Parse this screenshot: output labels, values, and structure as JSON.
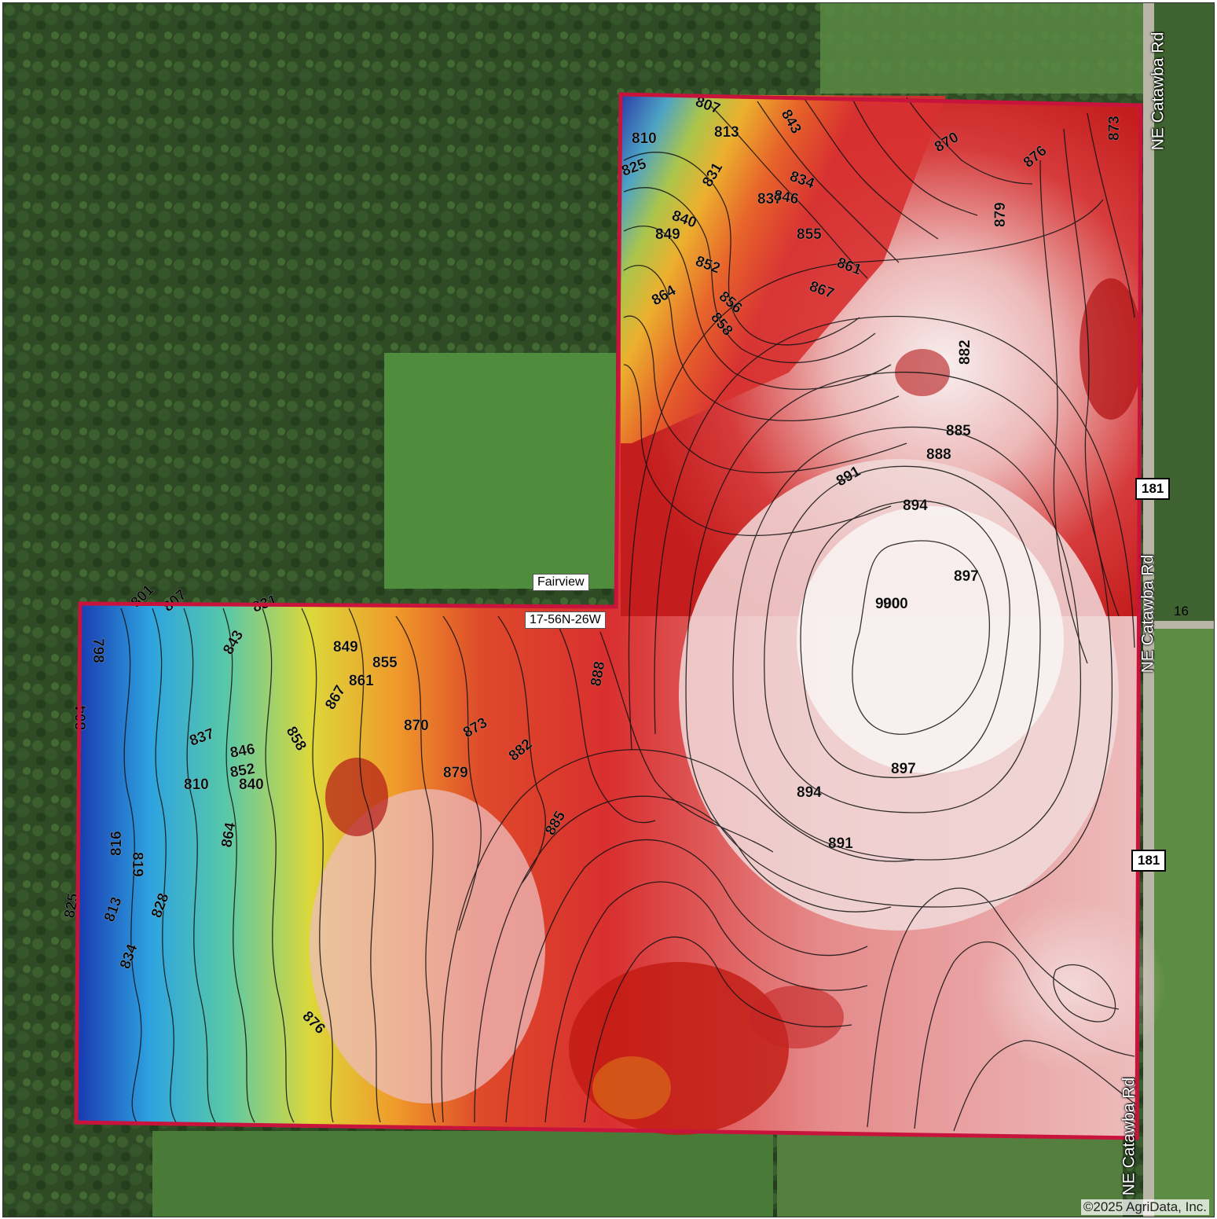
{
  "map": {
    "road_labels": [
      "NE Catawba Rd",
      "NE Catawba Rd",
      "NE Catawba Rd"
    ],
    "route_shields": [
      "181",
      "181"
    ],
    "route_number": "16",
    "place_label": "Fairview",
    "section_label": "17-56N-26W",
    "copyright": "©2025 AgriData, Inc.",
    "colors": {
      "boundary": "#c8143c",
      "low_elevation": "#1a3fa8",
      "mid_elevation": "#e6d92c",
      "high_elevation": "#c81e1e",
      "peak_elevation": "#f7ecec",
      "forest": "#2f4d27",
      "field": "#4e8a3a"
    },
    "contour_labels": [
      "798",
      "801",
      "804",
      "807",
      "810",
      "813",
      "816",
      "819",
      "825",
      "828",
      "831",
      "834",
      "837",
      "840",
      "843",
      "846",
      "849",
      "852",
      "855",
      "858",
      "861",
      "864",
      "867",
      "870",
      "873",
      "876",
      "879",
      "882",
      "885",
      "888",
      "891",
      "894",
      "897",
      "900",
      "810",
      "825",
      "807",
      "813",
      "831",
      "837",
      "843",
      "846",
      "834",
      "840",
      "849",
      "852",
      "856",
      "855",
      "858",
      "861",
      "864",
      "867",
      "870",
      "873",
      "876",
      "879",
      "882",
      "885",
      "888",
      "891",
      "894",
      "897",
      "900"
    ]
  }
}
